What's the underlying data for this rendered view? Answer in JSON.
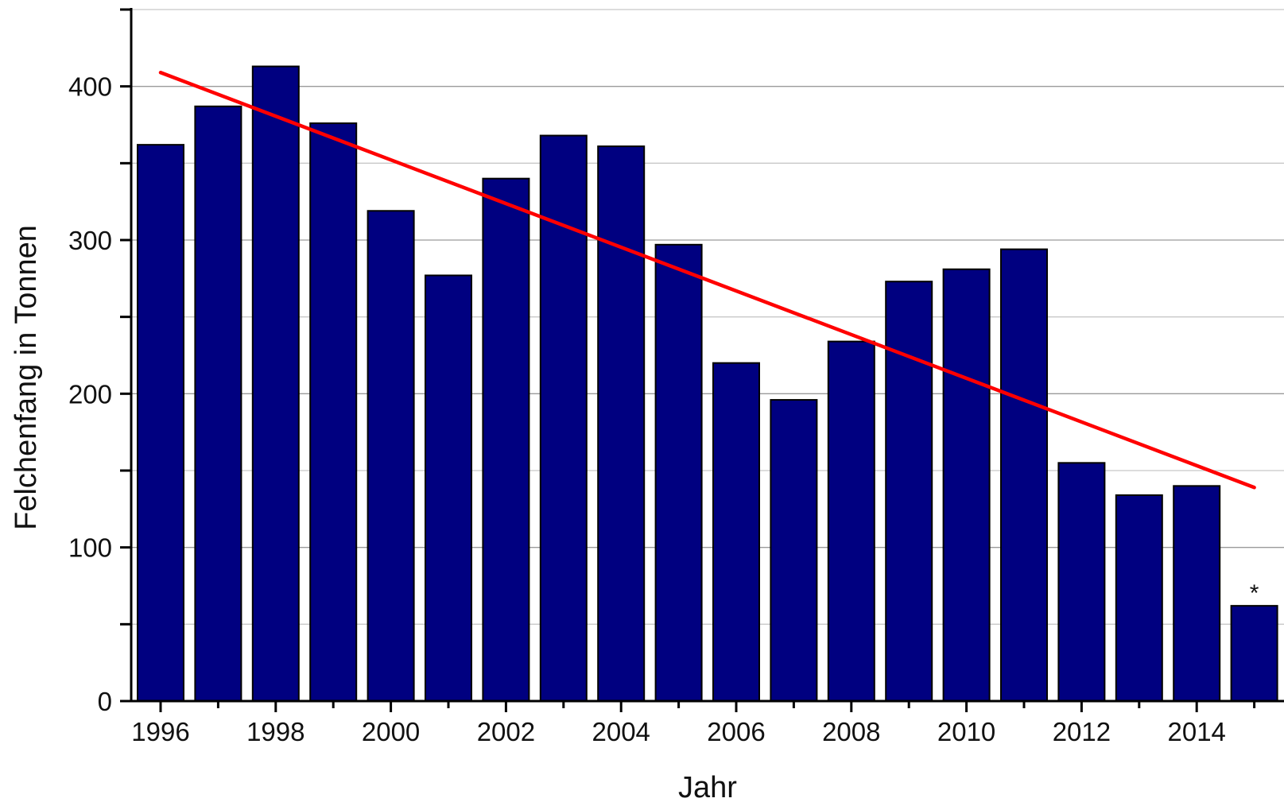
{
  "chart_data": {
    "type": "bar",
    "title": "",
    "xlabel": "Jahr",
    "ylabel": "Felchenfang in Tonnen",
    "x": [
      1996,
      1997,
      1998,
      1999,
      2000,
      2001,
      2002,
      2003,
      2004,
      2005,
      2006,
      2007,
      2008,
      2009,
      2010,
      2011,
      2012,
      2013,
      2014,
      2015
    ],
    "values": [
      362,
      387,
      413,
      376,
      319,
      277,
      340,
      368,
      361,
      297,
      220,
      196,
      234,
      273,
      281,
      294,
      155,
      134,
      140,
      62
    ],
    "xlim": [
      1995.6,
      1996.0
    ],
    "ylim": [
      0,
      450
    ],
    "x_ticks": [
      "1996",
      "1998",
      "2000",
      "2002",
      "2004",
      "2006",
      "2008",
      "2010",
      "2012",
      "2014"
    ],
    "y_ticks": [
      "0",
      "100",
      "200",
      "300",
      "400"
    ],
    "grid": "horizontal",
    "bar_color": "#000080",
    "trend_color": "#ff0000",
    "trend_line": {
      "x_start": 1996,
      "y_start": 409,
      "x_end": 2015,
      "y_end": 139
    },
    "annotations": [
      {
        "x": 2015,
        "text": "*"
      }
    ]
  }
}
